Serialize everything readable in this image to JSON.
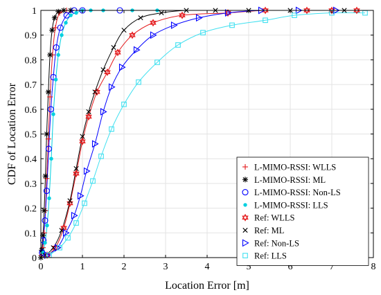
{
  "chart_data": {
    "type": "line",
    "xlabel": "Location Error [m]",
    "ylabel": "CDF of Location Error",
    "xlim": [
      0,
      8
    ],
    "ylim": [
      0,
      1
    ],
    "xticks": [
      "0",
      "1",
      "2",
      "3",
      "4",
      "5",
      "6",
      "7",
      "8"
    ],
    "yticks": [
      "0",
      "0.1",
      "0.2",
      "0.3",
      "0.4",
      "0.5",
      "0.6",
      "0.7",
      "0.8",
      "0.9",
      "1"
    ],
    "grid": true,
    "legend_position": "lower-right",
    "series": [
      {
        "name": "L-MIMO-RSSI: WLLS",
        "marker": "plus",
        "color": "#e41a1c",
        "x": [
          0.02,
          0.05,
          0.08,
          0.11,
          0.14,
          0.18,
          0.22,
          0.28,
          0.35,
          0.45,
          0.62
        ],
        "y": [
          0.01,
          0.04,
          0.1,
          0.19,
          0.32,
          0.48,
          0.65,
          0.82,
          0.93,
          0.99,
          1.0
        ]
      },
      {
        "name": "L-MIMO-RSSI: ML",
        "marker": "asterisk",
        "color": "#000000",
        "x": [
          0.0,
          0.02,
          0.05,
          0.08,
          0.11,
          0.14,
          0.18,
          0.22,
          0.27,
          0.33,
          0.42,
          0.55,
          0.72
        ],
        "y": [
          0.0,
          0.03,
          0.09,
          0.19,
          0.33,
          0.5,
          0.67,
          0.82,
          0.92,
          0.97,
          0.995,
          1.0,
          1.0
        ]
      },
      {
        "name": "L-MIMO-RSSI: Non-LS",
        "marker": "circle",
        "color": "#0000ff",
        "x": [
          0.03,
          0.06,
          0.1,
          0.14,
          0.19,
          0.24,
          0.3,
          0.37,
          0.47,
          0.62,
          0.8,
          1.0,
          1.9
        ],
        "y": [
          0.02,
          0.07,
          0.15,
          0.27,
          0.44,
          0.6,
          0.73,
          0.85,
          0.93,
          0.98,
          1.0,
          1.0,
          1.0
        ]
      },
      {
        "name": "L-MIMO-RSSI: LLS",
        "marker": "dot",
        "color": "#00d0e0",
        "x": [
          0.05,
          0.1,
          0.15,
          0.2,
          0.25,
          0.3,
          0.36,
          0.42,
          0.5,
          0.6,
          0.72,
          0.85,
          1.0,
          1.2,
          1.5,
          2.2,
          2.8
        ],
        "y": [
          0.02,
          0.06,
          0.13,
          0.24,
          0.4,
          0.58,
          0.72,
          0.82,
          0.9,
          0.95,
          0.98,
          0.99,
          1.0,
          1.0,
          1.0,
          1.0,
          1.0
        ]
      },
      {
        "name": "Ref: WLLS",
        "marker": "star",
        "color": "#e41a1c",
        "x": [
          0.15,
          0.35,
          0.55,
          0.7,
          0.85,
          1.0,
          1.15,
          1.35,
          1.6,
          1.85,
          2.2,
          2.7,
          3.4,
          4.5,
          5.4,
          6.4,
          7.0,
          7.6
        ],
        "y": [
          0.01,
          0.04,
          0.12,
          0.22,
          0.34,
          0.47,
          0.57,
          0.67,
          0.75,
          0.83,
          0.9,
          0.95,
          0.98,
          0.99,
          1.0,
          1.0,
          1.0,
          1.0
        ]
      },
      {
        "name": "Ref: ML",
        "marker": "cross",
        "color": "#000000",
        "x": [
          0.1,
          0.3,
          0.5,
          0.7,
          0.85,
          1.0,
          1.15,
          1.3,
          1.5,
          1.75,
          2.0,
          2.4,
          2.9,
          3.5,
          4.2,
          5.0,
          6.0,
          7.3
        ],
        "y": [
          0.01,
          0.04,
          0.11,
          0.23,
          0.36,
          0.49,
          0.59,
          0.67,
          0.76,
          0.85,
          0.92,
          0.97,
          0.99,
          1.0,
          1.0,
          1.0,
          1.0,
          1.0
        ]
      },
      {
        "name": "Ref: Non-LS",
        "marker": "triangle-right",
        "color": "#0000ff",
        "x": [
          0.15,
          0.4,
          0.6,
          0.8,
          0.95,
          1.1,
          1.3,
          1.5,
          1.7,
          1.95,
          2.3,
          2.7,
          3.2,
          3.8,
          4.5,
          5.3,
          6.2,
          7.1
        ],
        "y": [
          0.01,
          0.04,
          0.1,
          0.17,
          0.25,
          0.35,
          0.46,
          0.59,
          0.69,
          0.77,
          0.84,
          0.9,
          0.94,
          0.97,
          0.99,
          1.0,
          1.0,
          1.0
        ]
      },
      {
        "name": "Ref: LLS",
        "marker": "square",
        "color": "#40e0f0",
        "x": [
          0.2,
          0.45,
          0.65,
          0.85,
          1.05,
          1.25,
          1.45,
          1.7,
          2.0,
          2.35,
          2.8,
          3.3,
          3.9,
          4.6,
          5.4,
          6.1,
          7.0,
          7.8
        ],
        "y": [
          0.01,
          0.04,
          0.08,
          0.14,
          0.22,
          0.31,
          0.41,
          0.52,
          0.62,
          0.71,
          0.79,
          0.86,
          0.91,
          0.94,
          0.96,
          0.98,
          0.99,
          0.99
        ]
      }
    ]
  }
}
